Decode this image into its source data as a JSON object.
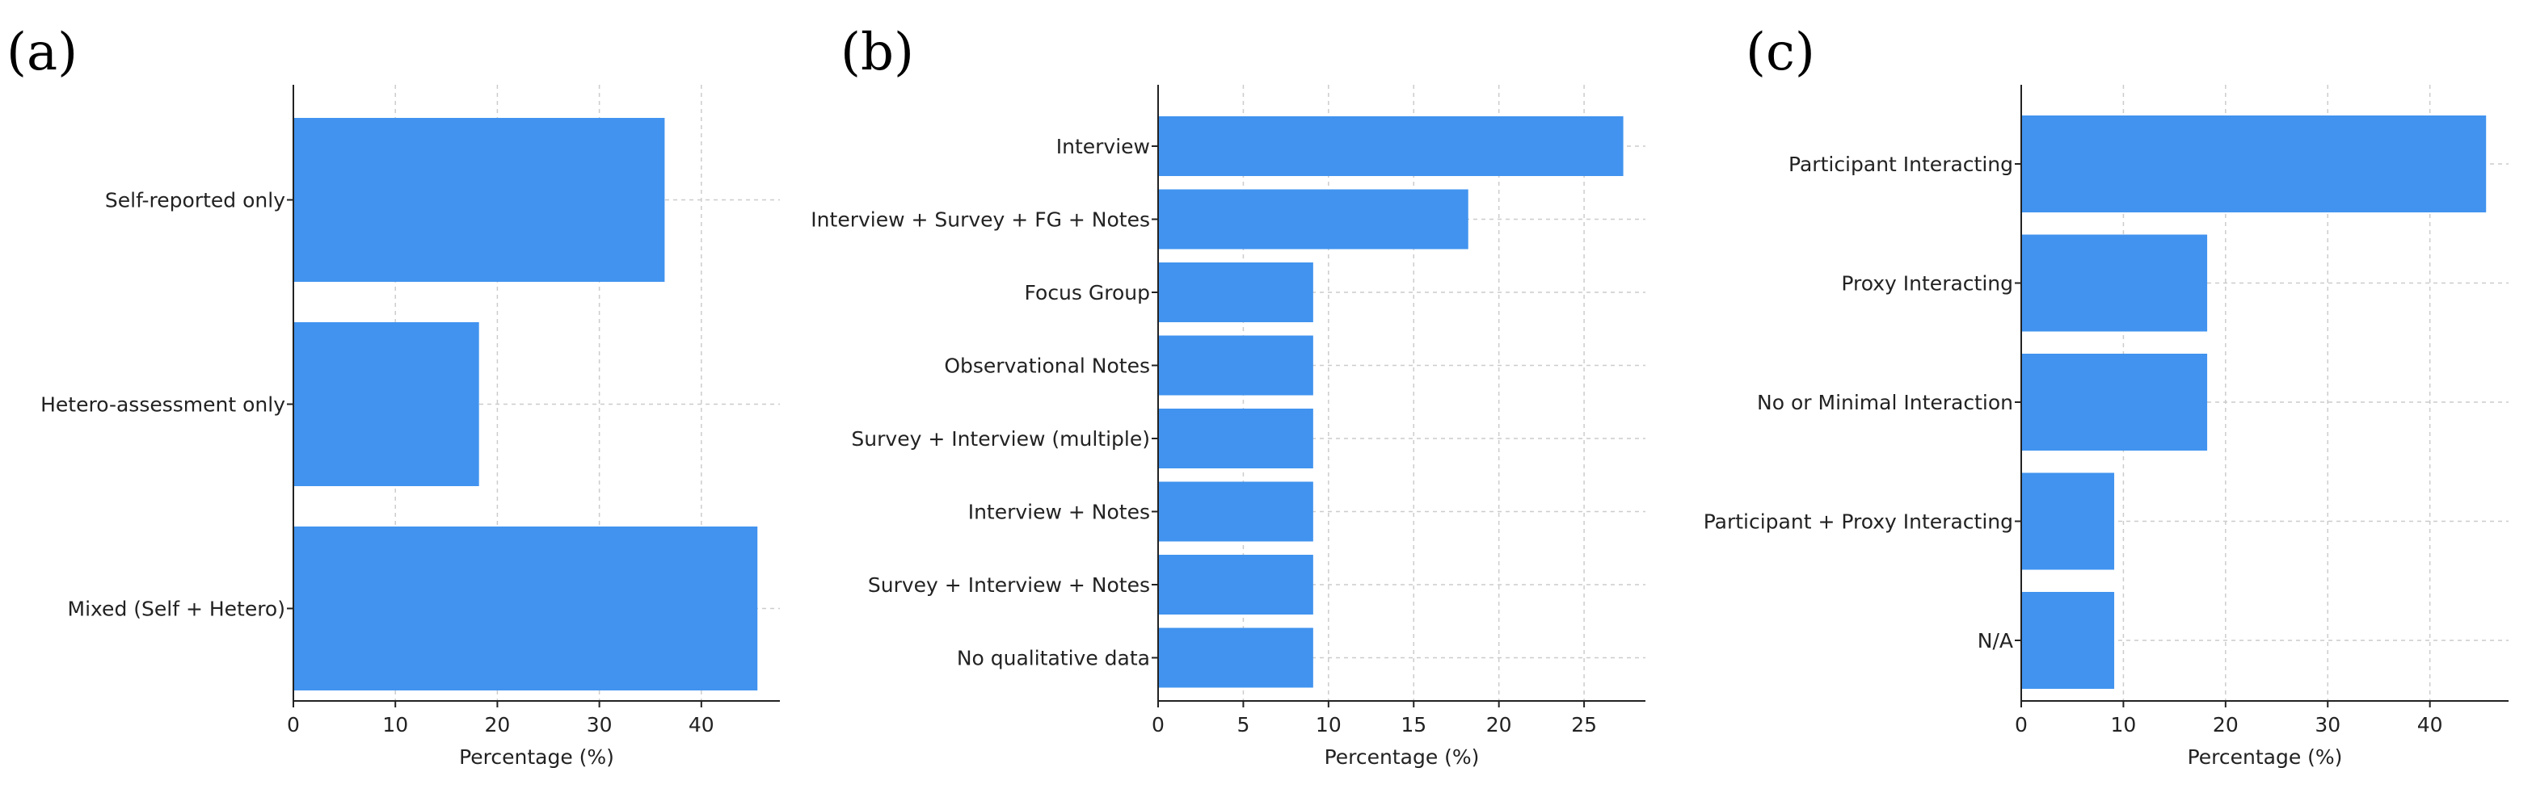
{
  "colors": {
    "bar": "#4193ef",
    "axis": "#222222",
    "grid": "#cccccc"
  },
  "chart_data": [
    {
      "type": "bar",
      "orientation": "horizontal",
      "panel": "(a)",
      "categories": [
        "Self-reported only",
        "Hetero-assessment only",
        "Mixed (Self + Hetero)"
      ],
      "values": [
        36.4,
        18.2,
        45.5
      ],
      "xlabel": "Percentage (%)",
      "ylabel": "",
      "xlim": [
        0,
        47.7
      ],
      "xticks": [
        0,
        10,
        20,
        30,
        40
      ],
      "grid": true
    },
    {
      "type": "bar",
      "orientation": "horizontal",
      "panel": "(b)",
      "categories": [
        "Interview",
        "Interview + Survey + FG + Notes",
        "Focus Group",
        "Observational Notes",
        "Survey + Interview (multiple)",
        "Interview + Notes",
        "Survey + Interview + Notes",
        "No qualitative data"
      ],
      "values": [
        27.3,
        18.2,
        9.1,
        9.1,
        9.1,
        9.1,
        9.1,
        9.1
      ],
      "xlabel": "Percentage (%)",
      "ylabel": "",
      "xlim": [
        0,
        28.6
      ],
      "xticks": [
        0,
        5,
        10,
        15,
        20,
        25
      ],
      "grid": true
    },
    {
      "type": "bar",
      "orientation": "horizontal",
      "panel": "(c)",
      "categories": [
        "Participant Interacting",
        "Proxy Interacting",
        "No or Minimal Interaction",
        "Participant + Proxy Interacting",
        "N/A"
      ],
      "values": [
        45.5,
        18.2,
        18.2,
        9.1,
        9.1
      ],
      "xlabel": "Percentage (%)",
      "ylabel": "",
      "xlim": [
        0,
        47.7
      ],
      "xticks": [
        0,
        10,
        20,
        30,
        40
      ],
      "grid": true
    }
  ]
}
